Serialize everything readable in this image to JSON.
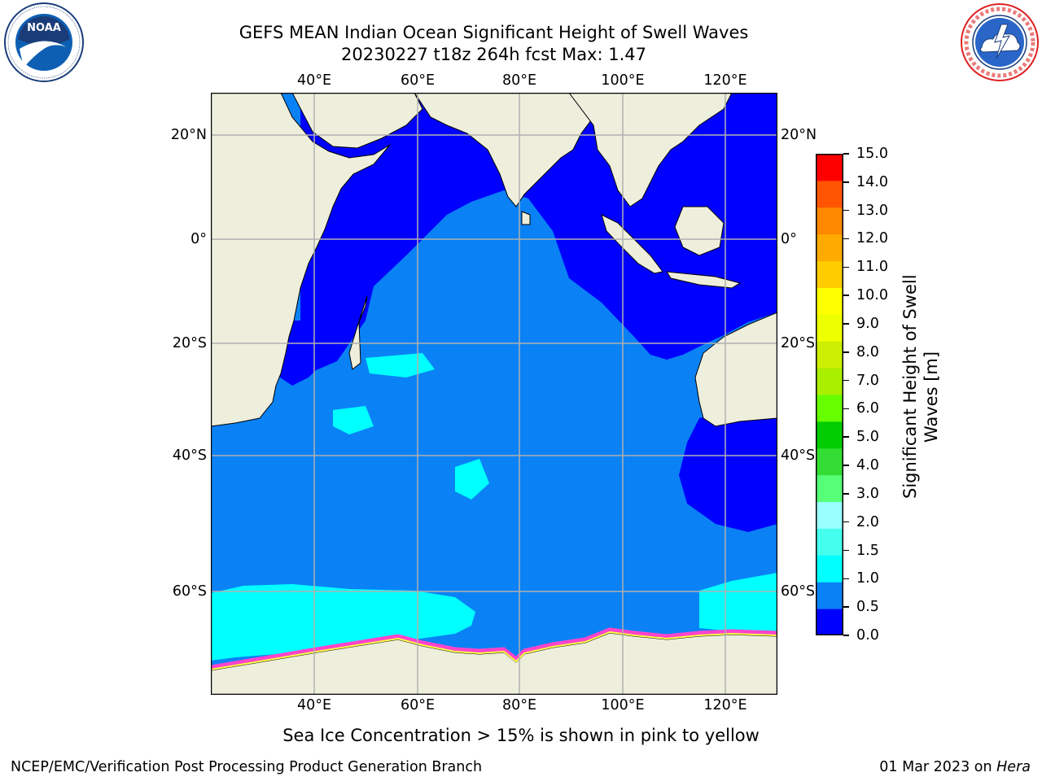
{
  "header": {
    "title_line1": "GEFS MEAN Indian Ocean Significant Height of Swell Waves",
    "title_line2": "20230227 t18z 264h fcst   Max: 1.47"
  },
  "logos": {
    "noaa": {
      "text": "NOAA",
      "ring_text": "NATIONAL OCEANIC AND ATMOSPHERIC ADMINISTRATION · U.S. DEPARTMENT OF COMMERCE"
    },
    "nws": {
      "ring_text": "NATIONAL WEATHER SERVICE"
    }
  },
  "map": {
    "lon_ticks": [
      "40°E",
      "60°E",
      "80°E",
      "100°E",
      "120°E"
    ],
    "lat_ticks_left": [
      "20°N",
      "0°",
      "20°S",
      "40°S",
      "60°S"
    ],
    "lat_ticks_right": [
      "20°N",
      "0°",
      "20°S",
      "40°S",
      "60°S"
    ],
    "colors": {
      "land": "#eeeedd",
      "ocean_0_05": "#0000ff",
      "ocean_05_1": "#0a82f5",
      "ocean_1_15": "#00ffff",
      "ice_pink": "#ff44cc",
      "ice_yellow": "#ffff44",
      "grid": "#b0b0b0"
    }
  },
  "colorbar": {
    "label_line1": "Significant Height of Swell",
    "label_line2": "Waves [m]",
    "ticks": [
      "0.0",
      "0.5",
      "1.0",
      "1.5",
      "2.0",
      "3.0",
      "4.0",
      "5.0",
      "6.0",
      "7.0",
      "8.0",
      "9.0",
      "10.0",
      "11.0",
      "12.0",
      "13.0",
      "14.0",
      "15.0"
    ],
    "colors": [
      "#0000ff",
      "#0a82f5",
      "#00ffff",
      "#44ffee",
      "#99ffff",
      "#55ff77",
      "#33dd33",
      "#00cc00",
      "#66ff00",
      "#aaee00",
      "#ccee00",
      "#eeff00",
      "#ffff00",
      "#ffcc00",
      "#ffaa00",
      "#ff8800",
      "#ff5500",
      "#ff0000"
    ]
  },
  "annotation": {
    "sea_ice_note": "Sea Ice Concentration > 15% is shown in pink to yellow"
  },
  "footer": {
    "left": "NCEP/EMC/Verification Post Processing Product Generation Branch",
    "right_date": "01 Mar 2023 on ",
    "right_host": "Hera"
  }
}
